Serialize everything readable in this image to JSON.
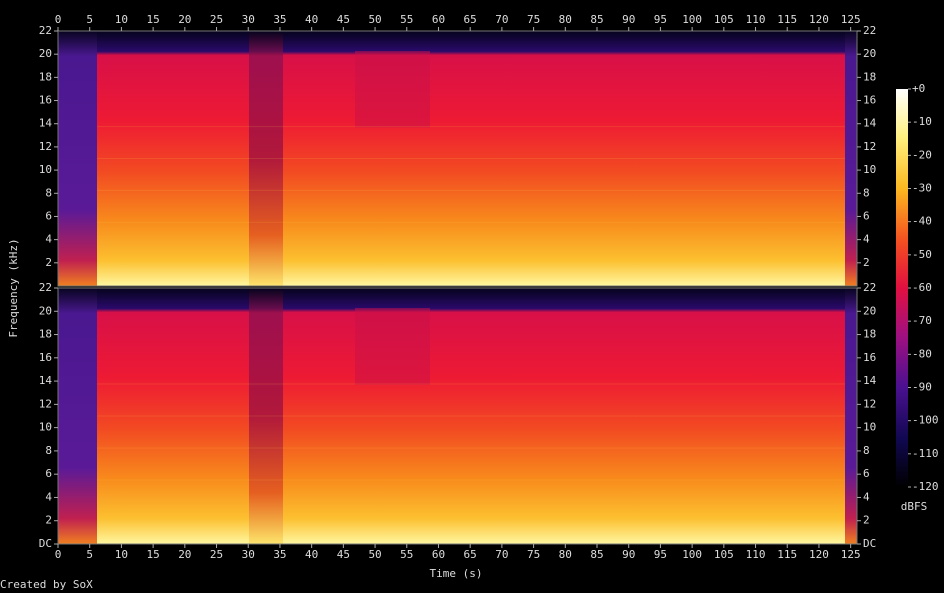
{
  "chart_data": {
    "type": "spectrogram",
    "xlabel": "Time (s)",
    "ylabel": "Frequency (kHz)",
    "footer": "Created by SoX",
    "xlim": [
      0,
      126
    ],
    "xticks": [
      0,
      5,
      10,
      15,
      20,
      25,
      30,
      35,
      40,
      45,
      50,
      55,
      60,
      65,
      70,
      75,
      80,
      85,
      90,
      95,
      100,
      105,
      110,
      115,
      120,
      125
    ],
    "channels": [
      {
        "ylim": [
          0,
          22
        ],
        "yticks": [
          2,
          4,
          6,
          8,
          10,
          12,
          14,
          16,
          18,
          20,
          22
        ]
      },
      {
        "ylim": [
          0,
          22
        ],
        "yticks": [
          {
            "value": 0,
            "label": "DC"
          },
          2,
          4,
          6,
          8,
          10,
          12,
          14,
          16,
          18,
          20,
          22
        ]
      }
    ],
    "colorbar": {
      "label": "dBFS",
      "lim": [
        -120,
        0
      ],
      "ticks": [
        {
          "value": 0,
          "label": "+0"
        },
        -10,
        -20,
        -30,
        -40,
        -50,
        -60,
        -70,
        -80,
        -90,
        -100,
        -110,
        -120
      ]
    }
  }
}
